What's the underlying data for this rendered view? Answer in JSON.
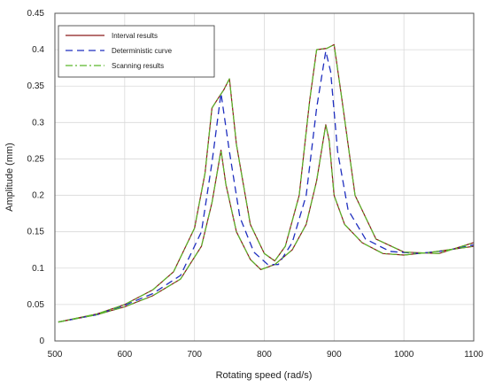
{
  "chart_data": {
    "type": "line",
    "xlabel": "Rotating speed (rad/s)",
    "ylabel": "Amplitude (mm)",
    "xlim": [
      500,
      1100
    ],
    "ylim": [
      0,
      0.45
    ],
    "xticks": [
      500,
      600,
      700,
      800,
      900,
      1000,
      1100
    ],
    "yticks": [
      0,
      0.05,
      0.1,
      0.15,
      0.2,
      0.25,
      0.3,
      0.35,
      0.4,
      0.45
    ],
    "xtick_labels": [
      "500",
      "600",
      "700",
      "800",
      "900",
      "1000",
      "1100"
    ],
    "ytick_labels": [
      "0",
      "0.05",
      "0.1",
      "0.15",
      "0.2",
      "0.25",
      "0.3",
      "0.35",
      "0.4",
      "0.45"
    ],
    "grid": true,
    "legend_position": "top-left",
    "series": [
      {
        "name": "Interval results",
        "color": "#8b1a1a",
        "style": "solid",
        "bands": [
          {
            "x": [
              505,
              560,
              600,
              640,
              670,
              700,
              715,
              725,
              735,
              742,
              750,
              760,
              780,
              800,
              815,
              830,
              850,
              865,
              875,
              890,
              900,
              910,
              930,
              960,
              1000,
              1050,
              1100
            ],
            "y": [
              0.026,
              0.037,
              0.05,
              0.07,
              0.095,
              0.155,
              0.23,
              0.32,
              0.335,
              0.345,
              0.36,
              0.27,
              0.16,
              0.12,
              0.11,
              0.13,
              0.2,
              0.33,
              0.4,
              0.402,
              0.407,
              0.34,
              0.2,
              0.14,
              0.122,
              0.12,
              0.135
            ]
          },
          {
            "x": [
              505,
              560,
              600,
              640,
              680,
              710,
              725,
              738,
              745,
              760,
              780,
              795,
              815,
              840,
              860,
              875,
              888,
              893,
              900,
              915,
              940,
              970,
              1000,
              1040,
              1100
            ],
            "y": [
              0.026,
              0.036,
              0.047,
              0.062,
              0.085,
              0.13,
              0.19,
              0.262,
              0.215,
              0.15,
              0.112,
              0.098,
              0.105,
              0.125,
              0.16,
              0.22,
              0.297,
              0.275,
              0.2,
              0.16,
              0.135,
              0.12,
              0.118,
              0.122,
              0.13
            ]
          }
        ]
      },
      {
        "name": "Deterministic curve",
        "color": "#1f2fbf",
        "style": "dashed",
        "x": [
          505,
          560,
          600,
          640,
          680,
          710,
          725,
          738,
          750,
          765,
          785,
          805,
          820,
          840,
          860,
          875,
          888,
          895,
          905,
          920,
          945,
          980,
          1020,
          1060,
          1100
        ],
        "y": [
          0.026,
          0.036,
          0.049,
          0.065,
          0.09,
          0.15,
          0.245,
          0.34,
          0.26,
          0.17,
          0.122,
          0.105,
          0.105,
          0.135,
          0.2,
          0.32,
          0.398,
          0.37,
          0.26,
          0.18,
          0.14,
          0.123,
          0.12,
          0.124,
          0.132
        ]
      },
      {
        "name": "Scanning results",
        "color": "#5ab82a",
        "style": "dashdot",
        "bands": [
          {
            "x": [
              505,
              560,
              600,
              640,
              670,
              700,
              715,
              725,
              735,
              742,
              750,
              760,
              780,
              800,
              815,
              830,
              850,
              865,
              875,
              890,
              900,
              910,
              930,
              960,
              1000,
              1050,
              1100
            ],
            "y": [
              0.026,
              0.037,
              0.05,
              0.07,
              0.095,
              0.155,
              0.23,
              0.32,
              0.335,
              0.345,
              0.36,
              0.27,
              0.16,
              0.12,
              0.11,
              0.13,
              0.2,
              0.33,
              0.4,
              0.402,
              0.407,
              0.34,
              0.2,
              0.14,
              0.122,
              0.12,
              0.135
            ]
          },
          {
            "x": [
              505,
              560,
              600,
              640,
              680,
              710,
              725,
              738,
              745,
              760,
              780,
              795,
              815,
              840,
              860,
              875,
              888,
              893,
              900,
              915,
              940,
              970,
              1000,
              1040,
              1100
            ],
            "y": [
              0.026,
              0.036,
              0.047,
              0.062,
              0.085,
              0.13,
              0.19,
              0.262,
              0.215,
              0.15,
              0.112,
              0.098,
              0.105,
              0.125,
              0.16,
              0.22,
              0.297,
              0.275,
              0.2,
              0.16,
              0.135,
              0.12,
              0.118,
              0.122,
              0.13
            ]
          }
        ]
      }
    ]
  }
}
